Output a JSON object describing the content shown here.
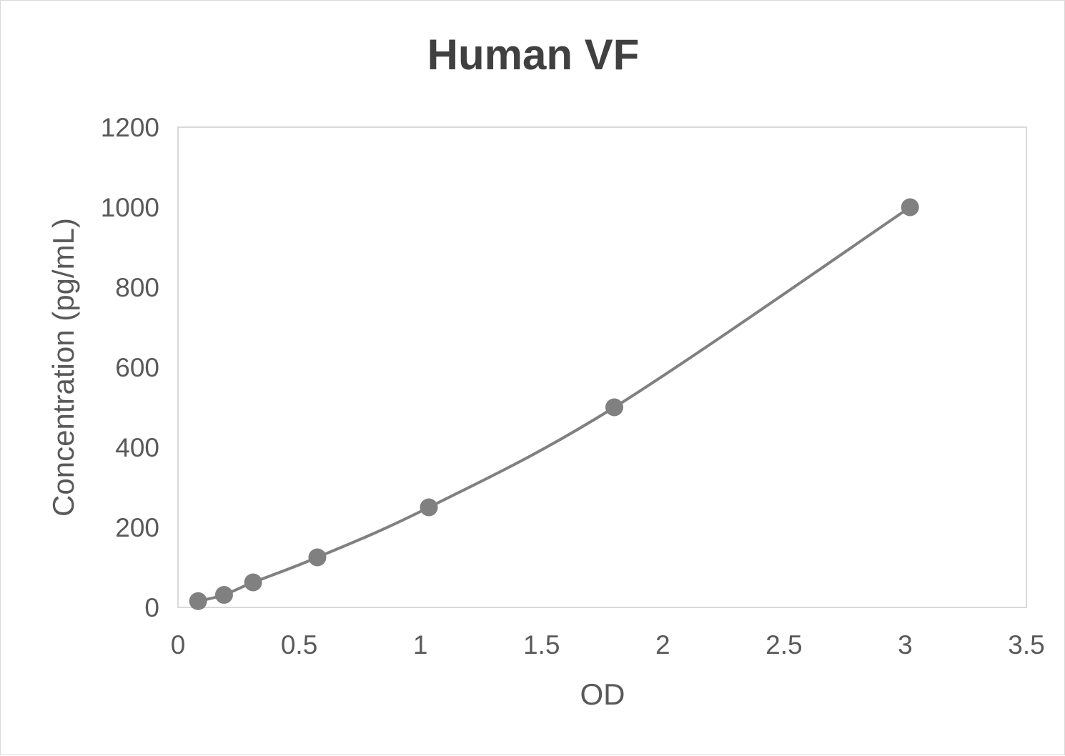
{
  "chart_data": {
    "type": "scatter",
    "title": "Human VF",
    "xlabel": "OD",
    "ylabel": "Concentration (pg/mL)",
    "xlim": [
      0,
      3.5
    ],
    "ylim": [
      0,
      1200
    ],
    "xticks": [
      "0",
      "0.5",
      "1",
      "1.5",
      "2",
      "2.5",
      "3",
      "3.5"
    ],
    "yticks": [
      "0",
      "200",
      "400",
      "600",
      "800",
      "1000",
      "1200"
    ],
    "grid": false,
    "legend": "none",
    "smooth_line": true,
    "color": "#808080",
    "series": [
      {
        "x": [
          0.083,
          0.19,
          0.31,
          0.575,
          1.035,
          1.8,
          3.02
        ],
        "y": [
          15.6,
          31.25,
          62.5,
          125,
          250,
          500,
          1000
        ]
      }
    ]
  }
}
